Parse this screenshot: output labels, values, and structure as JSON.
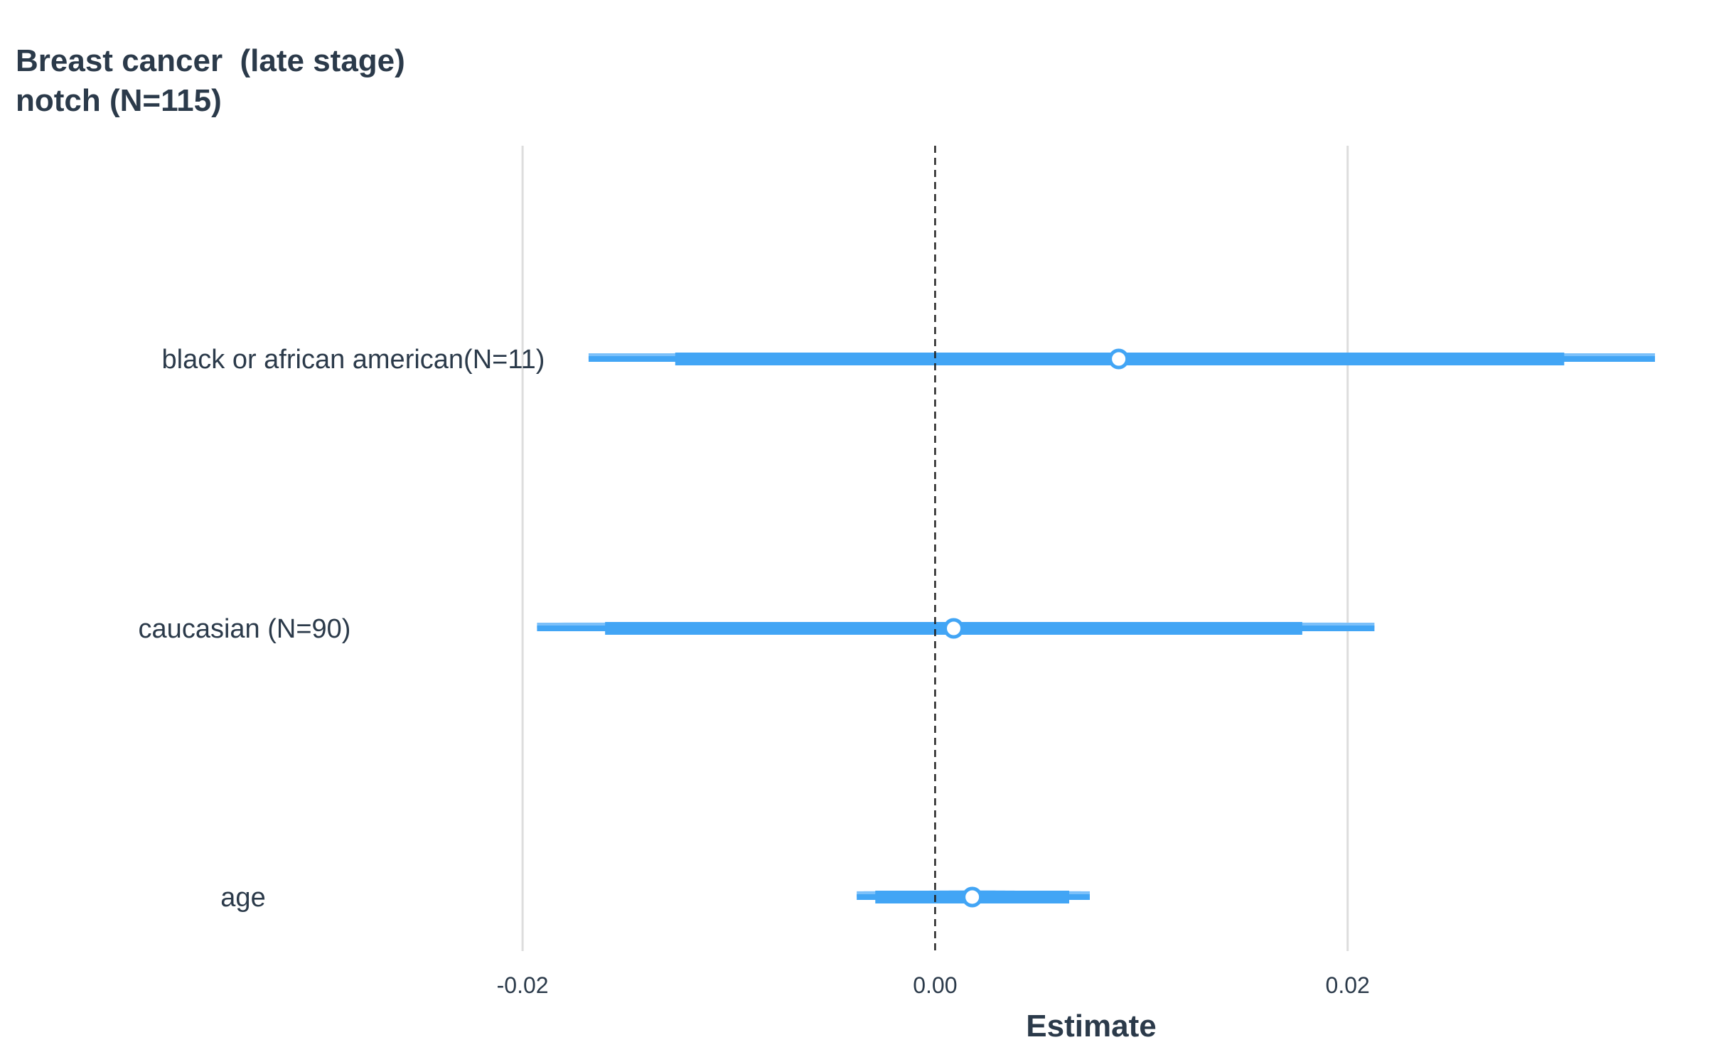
{
  "chart_data": {
    "type": "forest-density",
    "title_lines": [
      "Breast cancer  (late stage)",
      "notch (N=115)"
    ],
    "xlabel": "Estimate",
    "xlim": [
      -0.0199,
      0.0349
    ],
    "xticks": [
      -0.02,
      0.0,
      0.02
    ],
    "xtick_labels": [
      "-0.02",
      "0.00",
      "0.02"
    ],
    "reference_line": 0.0,
    "colors": {
      "density": "#7bc0fa",
      "interval": "#42a5f5",
      "point_fill": "#ffffff",
      "grid": "#dddddd",
      "text": "#2b3a4a"
    },
    "rows": [
      {
        "label": "black or african american(N=11)",
        "estimate": 0.0089,
        "ci_inner": [
          -0.0126,
          0.0305
        ],
        "ci_outer": [
          -0.0168,
          0.0349
        ],
        "density_sd": 0.0123,
        "density_scale": 0.45
      },
      {
        "label": "caucasian (N=90)",
        "estimate": 0.0009,
        "ci_inner": [
          -0.016,
          0.0178
        ],
        "ci_outer": [
          -0.0193,
          0.0213
        ],
        "density_sd": 0.0098,
        "density_scale": 0.62
      },
      {
        "label": "age",
        "estimate": 0.0018,
        "ci_inner": [
          -0.0029,
          0.0065
        ],
        "ci_outer": [
          -0.0038,
          0.0075
        ],
        "density_sd": 0.0026,
        "density_scale": 2.17
      }
    ]
  }
}
